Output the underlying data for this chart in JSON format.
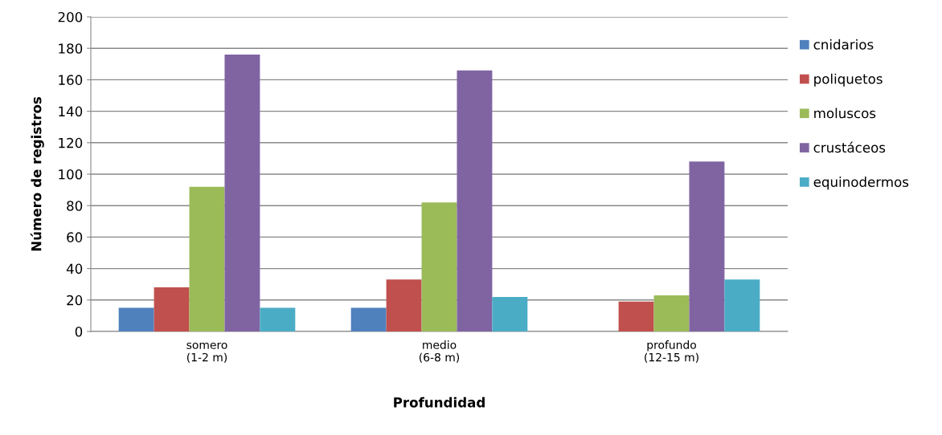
{
  "chart_data": {
    "type": "bar",
    "xlabel": "Profundidad",
    "ylabel": "Número de registros",
    "categories": [
      "somero\n(1-2 m)",
      "medio\n(6-8 m)",
      "profundo\n(12-15 m)"
    ],
    "series": [
      {
        "name": "cnidarios",
        "color": "#4f81bd",
        "values": [
          15,
          15,
          0
        ]
      },
      {
        "name": "poliquetos",
        "color": "#c0504d",
        "values": [
          28,
          33,
          19
        ]
      },
      {
        "name": "moluscos",
        "color": "#9bbb59",
        "values": [
          92,
          82,
          23
        ]
      },
      {
        "name": "crustáceos",
        "color": "#8064a2",
        "values": [
          176,
          166,
          108
        ]
      },
      {
        "name": "equinodermos",
        "color": "#4bacc6",
        "values": [
          15,
          22,
          33
        ]
      }
    ],
    "ylim": [
      0,
      200
    ],
    "yticks": [
      0,
      20,
      40,
      60,
      80,
      100,
      120,
      140,
      160,
      180,
      200
    ],
    "grid": "y",
    "legend": "right"
  }
}
